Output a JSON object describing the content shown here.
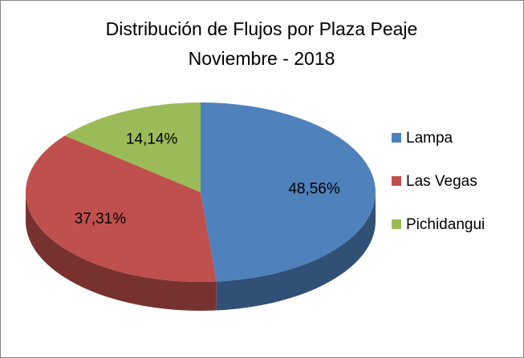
{
  "chart_data": {
    "type": "pie",
    "title": "Distribución de Flujos por Plaza Peaje",
    "subtitle": "Noviembre - 2018",
    "categories": [
      "Lampa",
      "Las Vegas",
      "Pichidangui"
    ],
    "values": [
      48.56,
      37.31,
      14.14
    ],
    "value_labels": [
      "48,56%",
      "37,31%",
      "14,14%"
    ],
    "colors": [
      "#4f81bd",
      "#c0504d",
      "#9bbb59"
    ],
    "legend": "right"
  }
}
